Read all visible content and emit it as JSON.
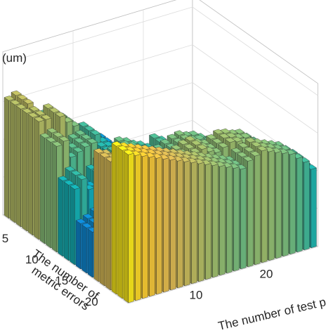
{
  "chart_data": {
    "type": "bar3d",
    "zlabel": "(um)",
    "xlabel": "The number of  test p",
    "ylabel_line1": "The number of",
    "ylabel_line2": "metric errors",
    "x_ticks": [
      "10",
      "20"
    ],
    "y_ticks": [
      "5",
      "10",
      "15",
      "20"
    ],
    "x_count": 27,
    "y_count": 21,
    "grid": true,
    "colormap": "parula",
    "height_scale": [
      0,
      1
    ],
    "profiles": {
      "y1": [
        0.78,
        0.8,
        0.6,
        0.65,
        0.55,
        0.62,
        0.57,
        0.52,
        0.46,
        0.4,
        0.43,
        0.36,
        0.3,
        0.35,
        0.28,
        0.22,
        0.2,
        0.18,
        0.14,
        0.12,
        0.1,
        0.09,
        0.07,
        0.05,
        0.04,
        0.03,
        0.02
      ],
      "y2": [
        0.78,
        0.78,
        0.62,
        0.77,
        0.72,
        0.68,
        0.6,
        0.53,
        0.58,
        0.52,
        0.45,
        0.42,
        0.35,
        0.33,
        0.3,
        0.26,
        0.21,
        0.17,
        0.15,
        0.13,
        0.11,
        0.09,
        0.07,
        0.06,
        0.04,
        0.03,
        0.02
      ],
      "y3": [
        0.7,
        0.72,
        0.6,
        0.62,
        0.64,
        0.65,
        0.55,
        0.5,
        0.53,
        0.52,
        0.48,
        0.5,
        0.48,
        0.42,
        0.43,
        0.4,
        0.37,
        0.34,
        0.3,
        0.27,
        0.24,
        0.2,
        0.17,
        0.14,
        0.1,
        0.07,
        0.05
      ],
      "y4": [
        0.5,
        0.55,
        0.47,
        0.45,
        0.52,
        0.56,
        0.58,
        0.6,
        0.65,
        0.63,
        0.6,
        0.58,
        0.55,
        0.6,
        0.57,
        0.53,
        0.52,
        0.48,
        0.44,
        0.42,
        0.37,
        0.33,
        0.27,
        0.22,
        0.17,
        0.12,
        0.08
      ],
      "y5": [
        0.3,
        0.32,
        0.35,
        0.36,
        0.4,
        0.45,
        0.48,
        0.52,
        0.55,
        0.58,
        0.6,
        0.64,
        0.66,
        0.68,
        0.69,
        0.67,
        0.66,
        0.63,
        0.6,
        0.58,
        0.55,
        0.5,
        0.45,
        0.38,
        0.3,
        0.22,
        0.15
      ],
      "y6": [
        0.85,
        0.83,
        0.8,
        0.78,
        0.75,
        0.72,
        0.7,
        0.68,
        0.66,
        0.64,
        0.7,
        0.72,
        0.74,
        0.75,
        0.72,
        0.7,
        0.72,
        0.74,
        0.73,
        0.71,
        0.7,
        0.66,
        0.62,
        0.55,
        0.45,
        0.36,
        0.26
      ],
      "y7": [
        0.98,
        0.96,
        0.94,
        0.92,
        0.9,
        0.88,
        0.86,
        0.84,
        0.82,
        0.8,
        0.78,
        0.76,
        0.74,
        0.72,
        0.7,
        0.68,
        0.66,
        0.7,
        0.72,
        0.74,
        0.72,
        0.7,
        0.68,
        0.66,
        0.62,
        0.58,
        0.52
      ]
    },
    "blocks": [
      {
        "y_from": 0,
        "y_to": 2,
        "profile": "y1"
      },
      {
        "y_from": 3,
        "y_to": 5,
        "profile": "y2"
      },
      {
        "y_from": 6,
        "y_to": 8,
        "profile": "y3"
      },
      {
        "y_from": 9,
        "y_to": 11,
        "profile": "y4"
      },
      {
        "y_from": 12,
        "y_to": 14,
        "profile": "y5"
      },
      {
        "y_from": 15,
        "y_to": 17,
        "profile": "y6"
      },
      {
        "y_from": 18,
        "y_to": 20,
        "profile": "y7"
      }
    ]
  }
}
